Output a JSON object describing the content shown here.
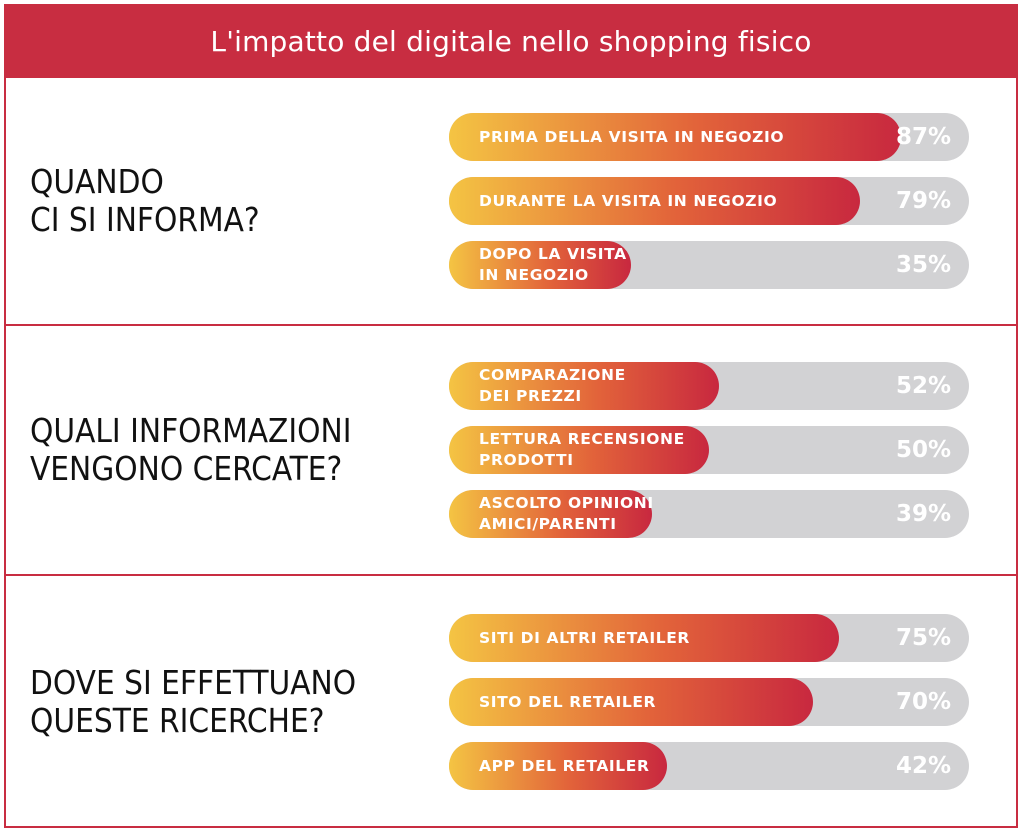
{
  "title": "L'impatto del digitale nello shopping fisico",
  "colors": {
    "brand_red": "#c82d41",
    "gradient_start": "#f4c443",
    "gradient_mid": "#e2633a",
    "gradient_end": "#c8283f",
    "track": "#d2d2d4"
  },
  "chart_data": {
    "type": "bar",
    "orientation": "horizontal",
    "xlim": [
      0,
      100
    ],
    "unit": "%",
    "groups": [
      {
        "question": "QUANDO\nCI SI INFORMA?",
        "bars": [
          {
            "label": "PRIMA DELLA VISITA IN NEGOZIO",
            "value": 87,
            "display": "87%"
          },
          {
            "label": "DURANTE LA VISITA IN NEGOZIO",
            "value": 79,
            "display": "79%"
          },
          {
            "label": "DOPO LA VISITA\nIN NEGOZIO",
            "value": 35,
            "display": "35%"
          }
        ]
      },
      {
        "question": "QUALI INFORMAZIONI\nVENGONO CERCATE?",
        "bars": [
          {
            "label": "COMPARAZIONE\nDEI PREZZI",
            "value": 52,
            "display": "52%"
          },
          {
            "label": "LETTURA RECENSIONE\nPRODOTTI",
            "value": 50,
            "display": "50%"
          },
          {
            "label": "ASCOLTO OPINIONI\nAMICI/PARENTI",
            "value": 39,
            "display": "39%"
          }
        ]
      },
      {
        "question": "DOVE SI EFFETTUANO\nQUESTE RICERCHE?",
        "bars": [
          {
            "label": "SITI DI ALTRI RETAILER",
            "value": 75,
            "display": "75%"
          },
          {
            "label": "SITO DEL RETAILER",
            "value": 70,
            "display": "70%"
          },
          {
            "label": "APP DEL RETAILER",
            "value": 42,
            "display": "42%"
          }
        ]
      }
    ]
  }
}
